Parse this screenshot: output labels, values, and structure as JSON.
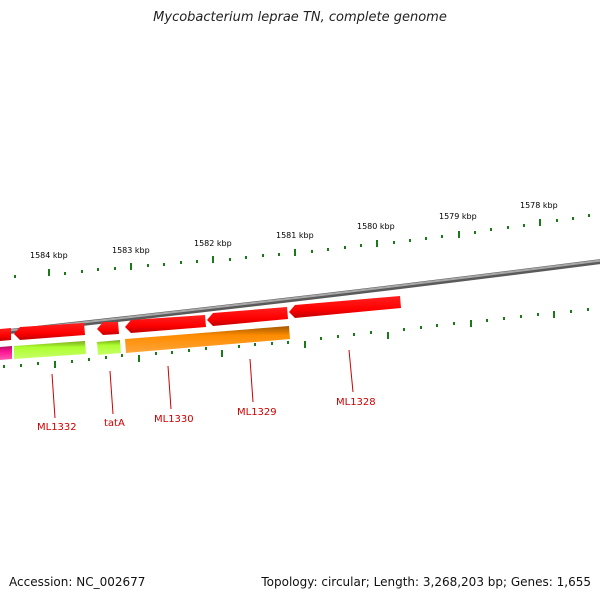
{
  "title": "Mycobacterium leprae TN, complete genome",
  "footer": {
    "accession": "Accession: NC_002677",
    "summary": "Topology: circular; Length: 3,268,203 bp; Genes: 1,655"
  },
  "scale_labels": [
    "1584 kbp",
    "1583 kbp",
    "1582 kbp",
    "1581 kbp",
    "1580 kbp",
    "1579 kbp",
    "1578 kbp"
  ],
  "gene_labels": [
    "ML1332",
    "tatA",
    "ML1330",
    "ML1329",
    "ML1328"
  ],
  "colors": {
    "forward_gene": "#ff0000",
    "reverse_gene_orange": "#ff8c00",
    "reverse_gene_green": "#adff2f",
    "reverse_gene_pink": "#ff1493",
    "backbone": "#7f7f7f",
    "tick": "#1a7a1a",
    "label": "#cc0000"
  }
}
